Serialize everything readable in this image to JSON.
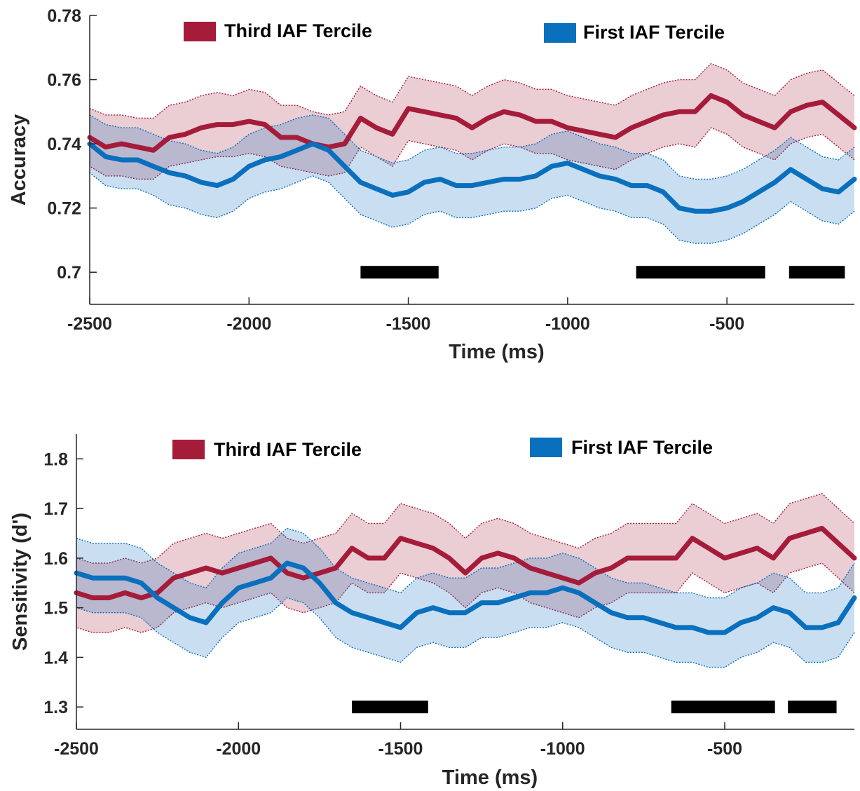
{
  "chart_data": [
    {
      "type": "line",
      "xlabel": "Time (ms)",
      "ylabel": "Accuracy",
      "xlim": [
        -2500,
        -100
      ],
      "ylim": [
        0.69,
        0.78
      ],
      "xticks": [
        -2500,
        -2000,
        -1500,
        -1000,
        -500
      ],
      "xtick_labels": [
        "-2500",
        "-2000",
        "-1500",
        "-1000",
        "-500"
      ],
      "yticks": [
        0.7,
        0.72,
        0.74,
        0.76,
        0.78
      ],
      "ytick_labels": [
        "0.7",
        "0.72",
        "0.74",
        "0.76",
        "0.78"
      ],
      "legend": [
        "Third IAF Tercile",
        "First IAF Tercile"
      ],
      "x": [
        -2500,
        -2450,
        -2400,
        -2350,
        -2300,
        -2250,
        -2200,
        -2150,
        -2100,
        -2050,
        -2000,
        -1950,
        -1900,
        -1850,
        -1800,
        -1750,
        -1700,
        -1650,
        -1600,
        -1550,
        -1500,
        -1450,
        -1400,
        -1350,
        -1300,
        -1250,
        -1200,
        -1150,
        -1100,
        -1050,
        -1000,
        -950,
        -900,
        -850,
        -800,
        -750,
        -700,
        -650,
        -600,
        -550,
        -500,
        -450,
        -400,
        -350,
        -300,
        -250,
        -200,
        -150,
        -100
      ],
      "series": [
        {
          "name": "Third IAF Tercile",
          "color": "#a51c3a",
          "values": [
            0.742,
            0.739,
            0.74,
            0.739,
            0.738,
            0.742,
            0.743,
            0.745,
            0.746,
            0.746,
            0.747,
            0.746,
            0.742,
            0.742,
            0.74,
            0.739,
            0.74,
            0.748,
            0.745,
            0.743,
            0.751,
            0.75,
            0.749,
            0.748,
            0.745,
            0.748,
            0.75,
            0.749,
            0.747,
            0.747,
            0.745,
            0.744,
            0.743,
            0.742,
            0.745,
            0.747,
            0.749,
            0.75,
            0.75,
            0.755,
            0.753,
            0.749,
            0.747,
            0.745,
            0.75,
            0.752,
            0.753,
            0.749,
            0.745
          ],
          "lower": [
            0.733,
            0.73,
            0.73,
            0.729,
            0.729,
            0.733,
            0.734,
            0.735,
            0.736,
            0.736,
            0.737,
            0.736,
            0.733,
            0.732,
            0.731,
            0.73,
            0.731,
            0.739,
            0.736,
            0.733,
            0.741,
            0.74,
            0.739,
            0.738,
            0.735,
            0.738,
            0.74,
            0.739,
            0.737,
            0.737,
            0.735,
            0.734,
            0.733,
            0.732,
            0.735,
            0.737,
            0.739,
            0.74,
            0.739,
            0.745,
            0.743,
            0.739,
            0.737,
            0.735,
            0.74,
            0.742,
            0.743,
            0.739,
            0.735
          ],
          "upper": [
            0.751,
            0.749,
            0.749,
            0.748,
            0.748,
            0.752,
            0.753,
            0.755,
            0.756,
            0.755,
            0.757,
            0.756,
            0.752,
            0.752,
            0.75,
            0.749,
            0.75,
            0.758,
            0.755,
            0.753,
            0.761,
            0.76,
            0.759,
            0.758,
            0.755,
            0.758,
            0.76,
            0.759,
            0.757,
            0.757,
            0.755,
            0.754,
            0.753,
            0.752,
            0.755,
            0.757,
            0.759,
            0.76,
            0.76,
            0.765,
            0.763,
            0.759,
            0.757,
            0.755,
            0.76,
            0.762,
            0.763,
            0.759,
            0.755
          ]
        },
        {
          "name": "First IAF Tercile",
          "color": "#0a6fbd",
          "values": [
            0.74,
            0.736,
            0.735,
            0.735,
            0.733,
            0.731,
            0.73,
            0.728,
            0.727,
            0.729,
            0.733,
            0.735,
            0.736,
            0.738,
            0.74,
            0.738,
            0.733,
            0.728,
            0.726,
            0.724,
            0.725,
            0.728,
            0.729,
            0.727,
            0.727,
            0.728,
            0.729,
            0.729,
            0.73,
            0.733,
            0.734,
            0.732,
            0.73,
            0.729,
            0.727,
            0.727,
            0.725,
            0.72,
            0.719,
            0.719,
            0.72,
            0.722,
            0.725,
            0.728,
            0.732,
            0.729,
            0.726,
            0.725,
            0.729
          ],
          "lower": [
            0.731,
            0.727,
            0.726,
            0.726,
            0.724,
            0.721,
            0.72,
            0.718,
            0.717,
            0.719,
            0.723,
            0.725,
            0.726,
            0.728,
            0.73,
            0.728,
            0.723,
            0.718,
            0.716,
            0.714,
            0.715,
            0.718,
            0.719,
            0.717,
            0.717,
            0.718,
            0.719,
            0.719,
            0.72,
            0.723,
            0.724,
            0.722,
            0.72,
            0.719,
            0.717,
            0.717,
            0.715,
            0.71,
            0.709,
            0.709,
            0.71,
            0.712,
            0.715,
            0.718,
            0.722,
            0.719,
            0.716,
            0.715,
            0.719
          ],
          "upper": [
            0.749,
            0.746,
            0.745,
            0.745,
            0.743,
            0.741,
            0.74,
            0.738,
            0.737,
            0.739,
            0.743,
            0.745,
            0.746,
            0.748,
            0.749,
            0.748,
            0.743,
            0.738,
            0.736,
            0.734,
            0.735,
            0.738,
            0.739,
            0.737,
            0.737,
            0.738,
            0.739,
            0.739,
            0.74,
            0.743,
            0.744,
            0.742,
            0.74,
            0.739,
            0.737,
            0.737,
            0.735,
            0.73,
            0.729,
            0.729,
            0.73,
            0.732,
            0.735,
            0.738,
            0.742,
            0.739,
            0.736,
            0.735,
            0.739
          ]
        }
      ],
      "significance_bars": {
        "y": 0.7,
        "color": "#000000",
        "segments": [
          [
            -1650,
            -1405
          ],
          [
            -785,
            -380
          ],
          [
            -305,
            -130
          ]
        ]
      }
    },
    {
      "type": "line",
      "xlabel": "Time (ms)",
      "ylabel": "Sensitivity (d')",
      "xlim": [
        -2500,
        -100
      ],
      "ylim": [
        1.255,
        1.85
      ],
      "xticks": [
        -2500,
        -2000,
        -1500,
        -1000,
        -500
      ],
      "xtick_labels": [
        "-2500",
        "-2000",
        "-1500",
        "-1000",
        "-500"
      ],
      "yticks": [
        1.3,
        1.4,
        1.5,
        1.6,
        1.7,
        1.8
      ],
      "ytick_labels": [
        "1.3",
        "1.4",
        "1.5",
        "1.6",
        "1.7",
        "1.8"
      ],
      "legend": [
        "Third IAF Tercile",
        "First IAF Tercile"
      ],
      "x": [
        -2500,
        -2450,
        -2400,
        -2350,
        -2300,
        -2250,
        -2200,
        -2150,
        -2100,
        -2050,
        -2000,
        -1950,
        -1900,
        -1850,
        -1800,
        -1750,
        -1700,
        -1650,
        -1600,
        -1550,
        -1500,
        -1450,
        -1400,
        -1350,
        -1300,
        -1250,
        -1200,
        -1150,
        -1100,
        -1050,
        -1000,
        -950,
        -900,
        -850,
        -800,
        -750,
        -700,
        -650,
        -600,
        -550,
        -500,
        -450,
        -400,
        -350,
        -300,
        -250,
        -200,
        -150,
        -100
      ],
      "series": [
        {
          "name": "Third IAF Tercile",
          "color": "#a51c3a",
          "values": [
            1.53,
            1.52,
            1.52,
            1.53,
            1.52,
            1.53,
            1.56,
            1.57,
            1.58,
            1.57,
            1.58,
            1.59,
            1.6,
            1.57,
            1.56,
            1.57,
            1.58,
            1.62,
            1.6,
            1.6,
            1.64,
            1.63,
            1.62,
            1.6,
            1.57,
            1.6,
            1.61,
            1.6,
            1.58,
            1.57,
            1.56,
            1.55,
            1.57,
            1.58,
            1.6,
            1.6,
            1.6,
            1.6,
            1.64,
            1.62,
            1.6,
            1.61,
            1.62,
            1.6,
            1.64,
            1.65,
            1.66,
            1.63,
            1.6
          ],
          "lower": [
            1.46,
            1.45,
            1.45,
            1.46,
            1.45,
            1.46,
            1.49,
            1.5,
            1.51,
            1.5,
            1.51,
            1.52,
            1.53,
            1.5,
            1.49,
            1.5,
            1.51,
            1.55,
            1.53,
            1.53,
            1.57,
            1.56,
            1.55,
            1.53,
            1.5,
            1.53,
            1.54,
            1.53,
            1.51,
            1.5,
            1.49,
            1.48,
            1.5,
            1.51,
            1.53,
            1.53,
            1.53,
            1.53,
            1.57,
            1.55,
            1.53,
            1.54,
            1.55,
            1.53,
            1.57,
            1.58,
            1.59,
            1.56,
            1.53
          ],
          "upper": [
            1.6,
            1.59,
            1.59,
            1.6,
            1.59,
            1.6,
            1.63,
            1.64,
            1.65,
            1.64,
            1.65,
            1.66,
            1.67,
            1.64,
            1.63,
            1.64,
            1.65,
            1.69,
            1.67,
            1.67,
            1.71,
            1.7,
            1.69,
            1.67,
            1.64,
            1.67,
            1.68,
            1.67,
            1.65,
            1.64,
            1.63,
            1.62,
            1.64,
            1.65,
            1.67,
            1.67,
            1.67,
            1.67,
            1.71,
            1.69,
            1.67,
            1.68,
            1.69,
            1.67,
            1.71,
            1.72,
            1.73,
            1.7,
            1.67
          ]
        },
        {
          "name": "First IAF Tercile",
          "color": "#0a6fbd",
          "values": [
            1.57,
            1.56,
            1.56,
            1.56,
            1.55,
            1.52,
            1.5,
            1.48,
            1.47,
            1.51,
            1.54,
            1.55,
            1.56,
            1.59,
            1.58,
            1.55,
            1.51,
            1.49,
            1.48,
            1.47,
            1.46,
            1.49,
            1.5,
            1.49,
            1.49,
            1.51,
            1.51,
            1.52,
            1.53,
            1.53,
            1.54,
            1.53,
            1.51,
            1.49,
            1.48,
            1.48,
            1.47,
            1.46,
            1.46,
            1.45,
            1.45,
            1.47,
            1.48,
            1.5,
            1.49,
            1.46,
            1.46,
            1.47,
            1.52
          ],
          "lower": [
            1.5,
            1.49,
            1.49,
            1.49,
            1.48,
            1.45,
            1.43,
            1.41,
            1.4,
            1.44,
            1.47,
            1.48,
            1.49,
            1.52,
            1.51,
            1.48,
            1.44,
            1.42,
            1.41,
            1.4,
            1.39,
            1.42,
            1.43,
            1.42,
            1.42,
            1.44,
            1.44,
            1.45,
            1.46,
            1.46,
            1.47,
            1.46,
            1.44,
            1.42,
            1.41,
            1.41,
            1.4,
            1.39,
            1.39,
            1.38,
            1.38,
            1.4,
            1.41,
            1.43,
            1.42,
            1.39,
            1.39,
            1.4,
            1.45
          ],
          "upper": [
            1.64,
            1.63,
            1.63,
            1.63,
            1.62,
            1.59,
            1.57,
            1.55,
            1.54,
            1.58,
            1.61,
            1.62,
            1.63,
            1.66,
            1.65,
            1.62,
            1.58,
            1.56,
            1.55,
            1.54,
            1.53,
            1.56,
            1.57,
            1.56,
            1.56,
            1.58,
            1.58,
            1.59,
            1.6,
            1.6,
            1.61,
            1.6,
            1.58,
            1.56,
            1.55,
            1.55,
            1.54,
            1.53,
            1.53,
            1.52,
            1.52,
            1.54,
            1.55,
            1.57,
            1.56,
            1.53,
            1.53,
            1.54,
            1.59
          ]
        }
      ],
      "significance_bars": {
        "y": 1.3,
        "color": "#000000",
        "segments": [
          [
            -1650,
            -1415
          ],
          [
            -665,
            -345
          ],
          [
            -305,
            -155
          ]
        ]
      }
    }
  ]
}
